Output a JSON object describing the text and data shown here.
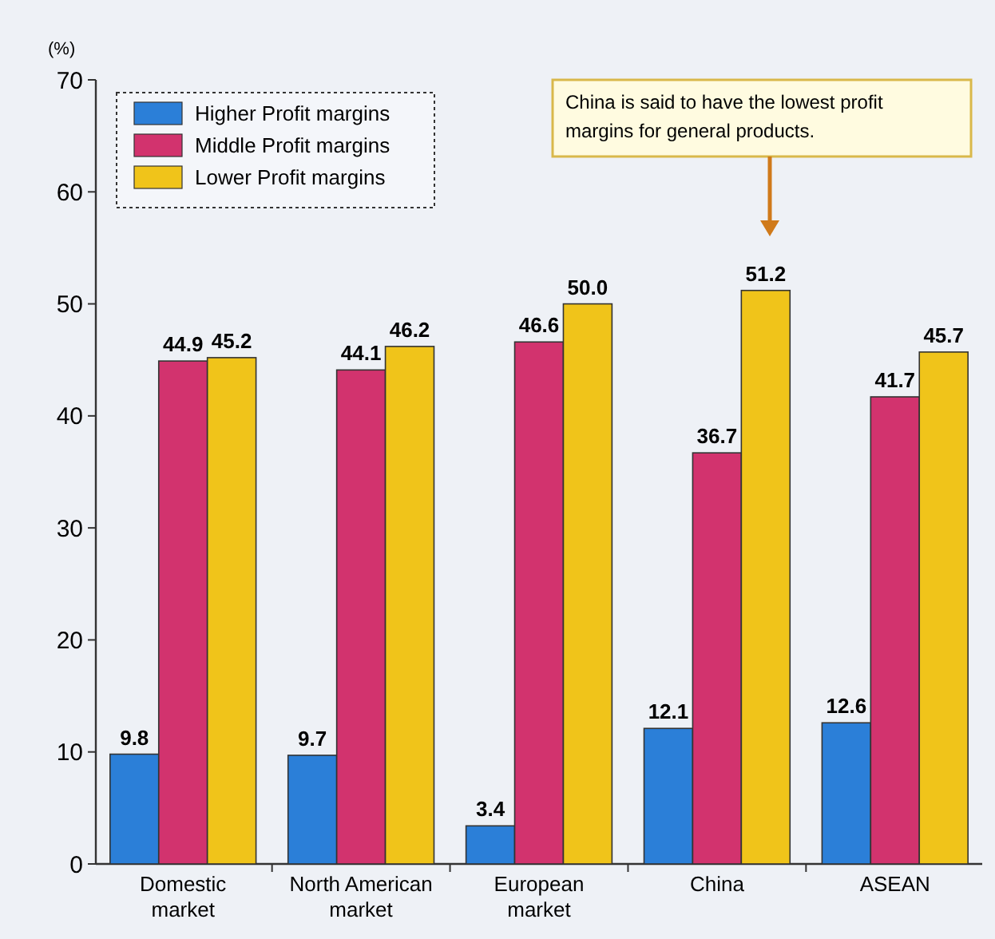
{
  "chart_data": {
    "type": "bar",
    "ylabel": "(%)",
    "categories": [
      "Domestic market",
      "North American market",
      "European market",
      "China",
      "ASEAN"
    ],
    "series": [
      {
        "name": "Higher Profit margins",
        "color": "#2b7fd8",
        "values": [
          9.8,
          9.7,
          3.4,
          12.1,
          12.6
        ],
        "value_labels": [
          "9.8",
          "9.7",
          "3.4",
          "12.1",
          "12.6"
        ]
      },
      {
        "name": "Middle Profit margins",
        "color": "#d2336e",
        "values": [
          44.9,
          44.1,
          46.6,
          36.7,
          41.7
        ],
        "value_labels": [
          "44.9",
          "44.1",
          "46.6",
          "36.7",
          "41.7"
        ]
      },
      {
        "name": "Lower Profit margins",
        "color": "#f0c41a",
        "values": [
          45.2,
          46.2,
          50.0,
          51.2,
          45.7
        ],
        "value_labels": [
          "45.2",
          "46.2",
          "50.0",
          "51.2",
          "45.7"
        ]
      }
    ],
    "ylim": [
      0,
      70
    ],
    "yticks": [
      0,
      10,
      20,
      30,
      40,
      50,
      60,
      70
    ],
    "legend": "top left",
    "annotations": [
      "China is said to have the lowest profit margins for general products."
    ]
  }
}
